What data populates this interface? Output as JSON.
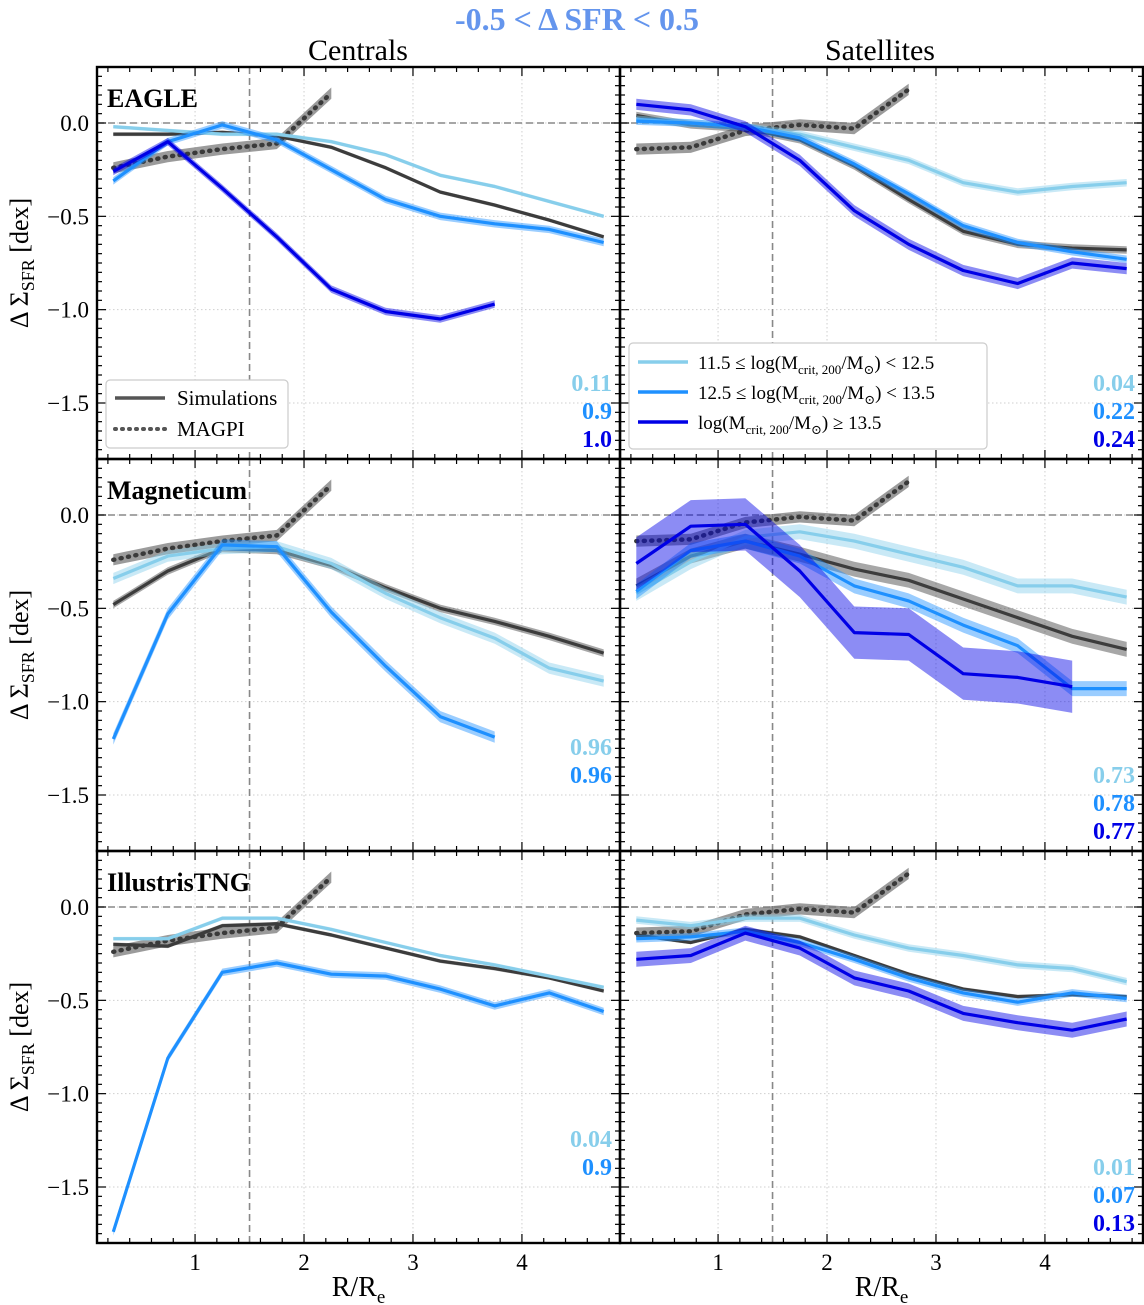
{
  "figure": {
    "suptitle": "-0.5 < Δ SFR < 0.5",
    "col_titles": [
      "Centrals",
      "Satellites"
    ],
    "ylabel": "Δ Σ",
    "ylabel_sub": "SFR",
    "ylabel_unit": " [dex]",
    "xlabel": "R/R",
    "xlabel_sub": "e",
    "colors": {
      "light": "#87ceeb",
      "mid": "#1e90ff",
      "dark": "#0000e6",
      "sim_all": "#3c3c3c",
      "magpi": "#555555",
      "suptitle": "#6495ed"
    }
  },
  "legend_left": [
    {
      "label": "Simulations",
      "style": "solid"
    },
    {
      "label": "MAGPI",
      "style": "dotted"
    }
  ],
  "legend_right": [
    {
      "label": "11.5 ≤ log(M",
      "sub": "crit, 200",
      "tail": "/M",
      "tail2": ") < 12.5",
      "color": "light"
    },
    {
      "label": "12.5 ≤ log(M",
      "sub": "crit, 200",
      "tail": "/M",
      "tail2": ") < 13.5",
      "color": "mid"
    },
    {
      "label": "log(M",
      "sub": "crit, 200",
      "tail": "/M",
      "tail2": ") ≥ 13.5",
      "color": "dark"
    }
  ],
  "chart_data": [
    {
      "type": "line",
      "title": "",
      "row_label": "EAGLE",
      "column": "Centrals",
      "xlim": [
        0.1,
        4.9
      ],
      "ylim": [
        -1.8,
        0.3
      ],
      "xticks": [
        1,
        2,
        3,
        4
      ],
      "yticks": [
        "0.0",
        "−0.5",
        "−1.0",
        "−1.5"
      ],
      "magpi": {
        "x": [
          0.25,
          0.75,
          1.25,
          1.75,
          2.25
        ],
        "y": [
          -0.24,
          -0.18,
          -0.14,
          -0.11,
          0.16
        ],
        "band": 0.03
      },
      "series": [
        {
          "color": "sim_all",
          "x": [
            0.25,
            0.75,
            1.25,
            1.75,
            2.25,
            2.75,
            3.25,
            3.75,
            4.25,
            4.75
          ],
          "y": [
            -0.06,
            -0.06,
            -0.05,
            -0.07,
            -0.13,
            -0.24,
            -0.37,
            -0.44,
            -0.52,
            -0.61
          ],
          "band": 0.01
        },
        {
          "color": "light",
          "x": [
            0.25,
            0.75,
            1.25,
            1.75,
            2.25,
            2.75,
            3.25,
            3.75,
            4.25,
            4.75
          ],
          "y": [
            -0.02,
            -0.04,
            -0.06,
            -0.06,
            -0.1,
            -0.17,
            -0.28,
            -0.34,
            -0.42,
            -0.5
          ],
          "band": 0.01
        },
        {
          "color": "mid",
          "x": [
            0.25,
            0.75,
            1.25,
            1.75,
            2.25,
            2.75,
            3.25,
            3.75,
            4.25,
            4.75
          ],
          "y": [
            -0.31,
            -0.1,
            -0.01,
            -0.09,
            -0.25,
            -0.41,
            -0.5,
            -0.54,
            -0.57,
            -0.64
          ],
          "band": 0.02
        },
        {
          "color": "dark",
          "x": [
            0.25,
            0.75,
            1.25,
            1.75,
            2.25,
            2.75,
            3.25,
            3.75
          ],
          "y": [
            -0.26,
            -0.1,
            -0.35,
            -0.61,
            -0.89,
            -1.01,
            -1.05,
            -0.97
          ],
          "band": 0.02
        }
      ],
      "annotations": [
        {
          "text": "0.11",
          "color": "light"
        },
        {
          "text": "0.9",
          "color": "mid"
        },
        {
          "text": "1.0",
          "color": "dark"
        }
      ]
    },
    {
      "type": "line",
      "title": "",
      "row_label": "",
      "column": "Satellites",
      "xlim": [
        0.1,
        4.9
      ],
      "ylim": [
        -1.8,
        0.3
      ],
      "xticks": [
        1,
        2,
        3,
        4
      ],
      "yticks": [
        "0.0",
        "−0.5",
        "−1.0",
        "−1.5"
      ],
      "magpi": {
        "x": [
          0.25,
          0.75,
          1.25,
          1.75,
          2.25,
          2.75
        ],
        "y": [
          -0.14,
          -0.13,
          -0.04,
          -0.01,
          -0.03,
          0.18
        ],
        "band": 0.03
      },
      "series": [
        {
          "color": "sim_all",
          "x": [
            0.25,
            0.75,
            1.25,
            1.75,
            2.25,
            2.75,
            3.25,
            3.75,
            4.25,
            4.75
          ],
          "y": [
            0.04,
            -0.01,
            -0.03,
            -0.09,
            -0.23,
            -0.41,
            -0.58,
            -0.65,
            -0.67,
            -0.68
          ],
          "band": 0.02
        },
        {
          "color": "light",
          "x": [
            0.25,
            0.75,
            1.25,
            1.75,
            2.25,
            2.75,
            3.25,
            3.75,
            4.25,
            4.75
          ],
          "y": [
            0.02,
            0.0,
            -0.02,
            -0.06,
            -0.13,
            -0.2,
            -0.32,
            -0.37,
            -0.34,
            -0.32
          ],
          "band": 0.02
        },
        {
          "color": "mid",
          "x": [
            0.25,
            0.75,
            1.25,
            1.75,
            2.25,
            2.75,
            3.25,
            3.75,
            4.25,
            4.75
          ],
          "y": [
            0.01,
            0.0,
            -0.02,
            -0.08,
            -0.22,
            -0.38,
            -0.55,
            -0.64,
            -0.69,
            -0.73
          ],
          "band": 0.02
        },
        {
          "color": "dark",
          "x": [
            0.25,
            0.75,
            1.25,
            1.75,
            2.25,
            2.75,
            3.25,
            3.75,
            4.25,
            4.75
          ],
          "y": [
            0.1,
            0.07,
            -0.02,
            -0.2,
            -0.47,
            -0.65,
            -0.79,
            -0.86,
            -0.75,
            -0.78
          ],
          "band": 0.03
        }
      ],
      "annotations": [
        {
          "text": "0.04",
          "color": "light"
        },
        {
          "text": "0.22",
          "color": "mid"
        },
        {
          "text": "0.24",
          "color": "dark"
        }
      ]
    },
    {
      "type": "line",
      "title": "",
      "row_label": "Magneticum",
      "column": "Centrals",
      "xlim": [
        0.1,
        4.9
      ],
      "ylim": [
        -1.8,
        0.3
      ],
      "xticks": [
        1,
        2,
        3,
        4
      ],
      "yticks": [
        "0.0",
        "−0.5",
        "−1.0",
        "−1.5"
      ],
      "magpi": {
        "x": [
          0.25,
          0.75,
          1.25,
          1.75,
          2.25
        ],
        "y": [
          -0.24,
          -0.18,
          -0.14,
          -0.11,
          0.16
        ],
        "band": 0.03
      },
      "series": [
        {
          "color": "sim_all",
          "x": [
            0.25,
            0.75,
            1.25,
            1.75,
            2.25,
            2.75,
            3.25,
            3.75,
            4.25,
            4.75
          ],
          "y": [
            -0.48,
            -0.3,
            -0.18,
            -0.19,
            -0.27,
            -0.39,
            -0.5,
            -0.57,
            -0.65,
            -0.74
          ],
          "band": 0.02
        },
        {
          "color": "light",
          "x": [
            0.25,
            0.75,
            1.25,
            1.75,
            2.25,
            2.75,
            3.25,
            3.75,
            4.25,
            4.75
          ],
          "y": [
            -0.34,
            -0.22,
            -0.18,
            -0.17,
            -0.26,
            -0.42,
            -0.55,
            -0.66,
            -0.82,
            -0.89
          ],
          "band": 0.03
        },
        {
          "color": "mid",
          "x": [
            0.25,
            0.75,
            1.25,
            1.75,
            2.25,
            2.75,
            3.25,
            3.75
          ],
          "y": [
            -1.2,
            -0.53,
            -0.16,
            -0.17,
            -0.52,
            -0.81,
            -1.08,
            -1.19
          ],
          "band": 0.03
        }
      ],
      "annotations": [
        {
          "text": "0.96",
          "color": "light"
        },
        {
          "text": "0.96",
          "color": "mid"
        }
      ]
    },
    {
      "type": "line",
      "title": "",
      "row_label": "",
      "column": "Satellites",
      "xlim": [
        0.1,
        4.9
      ],
      "ylim": [
        -1.8,
        0.3
      ],
      "xticks": [
        1,
        2,
        3,
        4
      ],
      "yticks": [
        "0.0",
        "−0.5",
        "−1.0",
        "−1.5"
      ],
      "magpi": {
        "x": [
          0.25,
          0.75,
          1.25,
          1.75,
          2.25,
          2.75
        ],
        "y": [
          -0.14,
          -0.13,
          -0.04,
          -0.01,
          -0.03,
          0.18
        ],
        "band": 0.03
      },
      "series": [
        {
          "color": "sim_all",
          "x": [
            0.25,
            0.75,
            1.25,
            1.75,
            2.25,
            2.75,
            3.25,
            3.75,
            4.25,
            4.75
          ],
          "y": [
            -0.38,
            -0.22,
            -0.14,
            -0.21,
            -0.29,
            -0.35,
            -0.45,
            -0.55,
            -0.65,
            -0.72
          ],
          "band": 0.04
        },
        {
          "color": "light",
          "x": [
            0.25,
            0.75,
            1.25,
            1.75,
            2.25,
            2.75,
            3.25,
            3.75,
            4.25,
            4.75
          ],
          "y": [
            -0.42,
            -0.25,
            -0.12,
            -0.09,
            -0.14,
            -0.21,
            -0.28,
            -0.38,
            -0.38,
            -0.44
          ],
          "band": 0.04
        },
        {
          "color": "mid",
          "x": [
            0.25,
            0.75,
            1.25,
            1.75,
            2.25,
            2.75,
            3.25,
            3.75,
            4.25,
            4.75
          ],
          "y": [
            -0.41,
            -0.19,
            -0.14,
            -0.22,
            -0.38,
            -0.46,
            -0.59,
            -0.7,
            -0.93,
            -0.93
          ],
          "band": 0.04
        },
        {
          "color": "dark",
          "x": [
            0.25,
            0.75,
            1.25,
            1.75,
            2.25,
            2.75,
            3.25,
            3.75,
            4.25
          ],
          "y": [
            -0.26,
            -0.06,
            -0.05,
            -0.3,
            -0.63,
            -0.64,
            -0.85,
            -0.87,
            -0.92
          ],
          "band": 0.14
        }
      ],
      "annotations": [
        {
          "text": "0.73",
          "color": "light"
        },
        {
          "text": "0.78",
          "color": "mid"
        },
        {
          "text": "0.77",
          "color": "dark"
        }
      ]
    },
    {
      "type": "line",
      "title": "",
      "row_label": "IllustrisTNG",
      "column": "Centrals",
      "xlim": [
        0.1,
        4.9
      ],
      "ylim": [
        -1.8,
        0.3
      ],
      "xticks": [
        1,
        2,
        3,
        4
      ],
      "yticks": [
        "0.0",
        "−0.5",
        "−1.0",
        "−1.5"
      ],
      "magpi": {
        "x": [
          0.25,
          0.75,
          1.25,
          1.75,
          2.25
        ],
        "y": [
          -0.24,
          -0.18,
          -0.14,
          -0.11,
          0.16
        ],
        "band": 0.03
      },
      "series": [
        {
          "color": "sim_all",
          "x": [
            0.25,
            0.75,
            1.25,
            1.75,
            2.25,
            2.75,
            3.25,
            3.75,
            4.25,
            4.75
          ],
          "y": [
            -0.2,
            -0.21,
            -0.1,
            -0.09,
            -0.15,
            -0.22,
            -0.29,
            -0.33,
            -0.38,
            -0.45
          ],
          "band": 0.01
        },
        {
          "color": "light",
          "x": [
            0.25,
            0.75,
            1.25,
            1.75,
            2.25,
            2.75,
            3.25,
            3.75,
            4.25,
            4.75
          ],
          "y": [
            -0.17,
            -0.17,
            -0.06,
            -0.06,
            -0.12,
            -0.19,
            -0.26,
            -0.31,
            -0.37,
            -0.43
          ],
          "band": 0.01
        },
        {
          "color": "mid",
          "x": [
            0.25,
            0.75,
            1.25,
            1.75,
            2.25,
            2.75,
            3.25,
            3.75,
            4.25,
            4.75
          ],
          "y": [
            -1.74,
            -0.81,
            -0.35,
            -0.3,
            -0.36,
            -0.37,
            -0.44,
            -0.53,
            -0.46,
            -0.56
          ],
          "band": 0.02
        }
      ],
      "annotations": [
        {
          "text": "0.04",
          "color": "light"
        },
        {
          "text": "0.9",
          "color": "mid"
        }
      ]
    },
    {
      "type": "line",
      "title": "",
      "row_label": "",
      "column": "Satellites",
      "xlim": [
        0.1,
        4.9
      ],
      "ylim": [
        -1.8,
        0.3
      ],
      "xticks": [
        1,
        2,
        3,
        4
      ],
      "yticks": [
        "0.0",
        "−0.5",
        "−1.0",
        "−1.5"
      ],
      "magpi": {
        "x": [
          0.25,
          0.75,
          1.25,
          1.75,
          2.25,
          2.75
        ],
        "y": [
          -0.14,
          -0.13,
          -0.04,
          -0.01,
          -0.03,
          0.18
        ],
        "band": 0.03
      },
      "series": [
        {
          "color": "sim_all",
          "x": [
            0.25,
            0.75,
            1.25,
            1.75,
            2.25,
            2.75,
            3.25,
            3.75,
            4.25,
            4.75
          ],
          "y": [
            -0.15,
            -0.19,
            -0.12,
            -0.16,
            -0.26,
            -0.36,
            -0.44,
            -0.48,
            -0.47,
            -0.48
          ],
          "band": 0.01
        },
        {
          "color": "light",
          "x": [
            0.25,
            0.75,
            1.25,
            1.75,
            2.25,
            2.75,
            3.25,
            3.75,
            4.25,
            4.75
          ],
          "y": [
            -0.07,
            -0.1,
            -0.06,
            -0.06,
            -0.15,
            -0.22,
            -0.26,
            -0.31,
            -0.33,
            -0.4
          ],
          "band": 0.02
        },
        {
          "color": "mid",
          "x": [
            0.25,
            0.75,
            1.25,
            1.75,
            2.25,
            2.75,
            3.25,
            3.75,
            4.25,
            4.75
          ],
          "y": [
            -0.17,
            -0.16,
            -0.13,
            -0.19,
            -0.28,
            -0.38,
            -0.46,
            -0.51,
            -0.46,
            -0.49
          ],
          "band": 0.02
        },
        {
          "color": "dark",
          "x": [
            0.25,
            0.75,
            1.25,
            1.75,
            2.25,
            2.75,
            3.25,
            3.75,
            4.25,
            4.75
          ],
          "y": [
            -0.28,
            -0.26,
            -0.14,
            -0.22,
            -0.38,
            -0.45,
            -0.57,
            -0.62,
            -0.66,
            -0.6
          ],
          "band": 0.04
        }
      ],
      "annotations": [
        {
          "text": "0.01",
          "color": "light"
        },
        {
          "text": "0.07",
          "color": "mid"
        },
        {
          "text": "0.13",
          "color": "dark"
        }
      ]
    }
  ]
}
